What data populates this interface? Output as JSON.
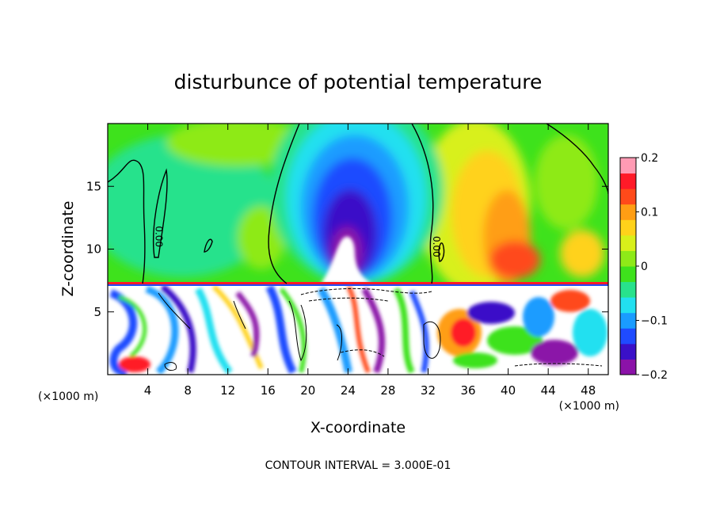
{
  "chart_data": {
    "type": "heatmap",
    "title": "disturbunce of potential temperature",
    "xlabel": "X-coordinate",
    "ylabel": "Z-coordinate",
    "x_unit_left": "(×1000 m)",
    "x_unit_right": "(×1000 m)",
    "footer": "CONTOUR INTERVAL = 3.000E-01",
    "xlim": [
      0,
      50
    ],
    "ylim": [
      0,
      20
    ],
    "x_ticks": [
      4,
      8,
      12,
      16,
      20,
      24,
      28,
      32,
      36,
      40,
      44,
      48
    ],
    "y_ticks": [
      5,
      10,
      15
    ],
    "colorbar": {
      "range": [
        -0.2,
        0.2
      ],
      "tick_values": [
        0.2,
        0.1,
        0,
        -0.1,
        -0.2
      ],
      "tick_labels": [
        "0.2",
        "0.1",
        "0",
        "−0.1",
        "−0.2"
      ]
    },
    "contour_labels": [
      {
        "text": "0.00",
        "x": 4.8,
        "z": 11.0
      },
      {
        "text": "0.00",
        "x": 32.5,
        "z": 10.2
      }
    ]
  },
  "colors": {
    "scale": [
      "#8b12a8",
      "#3a10c8",
      "#1f4bff",
      "#1a9cff",
      "#22e0f0",
      "#28e28c",
      "#3ee21c",
      "#8eea18",
      "#d8f01a",
      "#ffd21a",
      "#ff9e14",
      "#ff4a1a",
      "#ff1a28",
      "#ff9bb4"
    ]
  }
}
